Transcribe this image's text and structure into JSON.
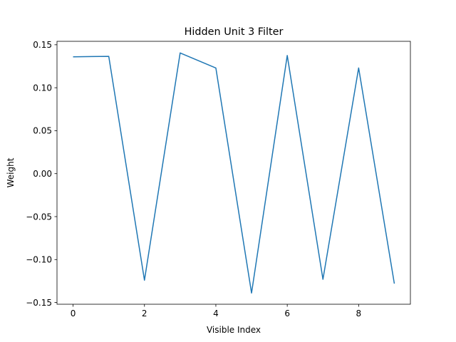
{
  "chart_data": {
    "type": "line",
    "title": "Hidden Unit 3 Filter",
    "xlabel": "Visible Index",
    "ylabel": "Weight",
    "xlim": [
      -0.45,
      9.45
    ],
    "ylim": [
      -0.152,
      0.154
    ],
    "grid": false,
    "xticks": [
      0,
      2,
      4,
      6,
      8
    ],
    "xtick_labels": [
      "0",
      "2",
      "4",
      "6",
      "8"
    ],
    "yticks": [
      -0.15,
      -0.1,
      -0.05,
      0.0,
      0.05,
      0.1,
      0.15
    ],
    "ytick_labels": [
      "−0.15",
      "−0.10",
      "−0.05",
      "0.00",
      "0.05",
      "0.10",
      "0.15"
    ],
    "series": [
      {
        "color": "#1f77b4",
        "x": [
          0,
          1,
          2,
          3,
          4,
          5,
          6,
          7,
          8,
          9
        ],
        "y": [
          0.136,
          0.1365,
          -0.124,
          0.1405,
          0.123,
          -0.139,
          0.1375,
          -0.123,
          0.123,
          -0.128
        ]
      }
    ]
  }
}
